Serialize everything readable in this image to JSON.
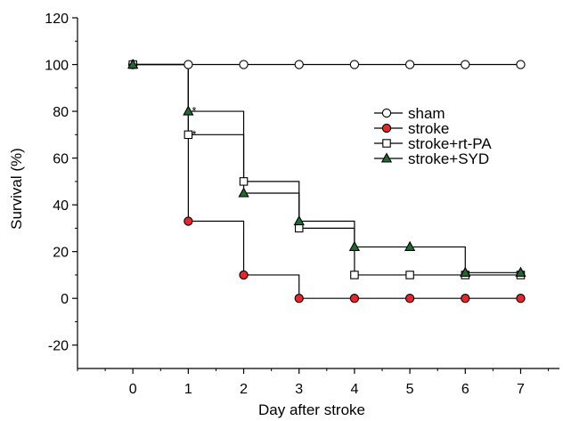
{
  "chart_data": {
    "type": "line",
    "step": true,
    "title": "",
    "xlabel": "Day after stroke",
    "ylabel": "Survival (%)",
    "xlim": [
      -1,
      7.7
    ],
    "ylim": [
      -30,
      120
    ],
    "x_ticks": [
      0,
      1,
      2,
      3,
      4,
      5,
      6,
      7
    ],
    "y_ticks": [
      -20,
      0,
      20,
      40,
      60,
      80,
      100,
      120
    ],
    "grid": false,
    "legend_position": "right-center",
    "x": [
      0,
      1,
      2,
      3,
      4,
      5,
      6,
      7
    ],
    "series": [
      {
        "name": "sham",
        "values": [
          100,
          100,
          100,
          100,
          100,
          100,
          100,
          100
        ],
        "marker": "circle-open",
        "color": "#ffffff"
      },
      {
        "name": "stroke",
        "values": [
          100,
          33,
          10,
          0,
          0,
          0,
          0,
          0
        ],
        "marker": "circle-filled",
        "color": "#e8252a"
      },
      {
        "name": "stroke+rt-PA",
        "values": [
          100,
          70,
          50,
          30,
          10,
          10,
          10,
          10
        ],
        "marker": "square-open",
        "color": "#ffffff"
      },
      {
        "name": "stroke+SYD",
        "values": [
          100,
          80,
          45,
          33,
          22,
          22,
          11,
          11
        ],
        "marker": "triangle-filled",
        "color": "#1e6b2e"
      }
    ],
    "annotations": [
      {
        "text": "*",
        "x": 1,
        "y": 80
      },
      {
        "text": "*",
        "x": 1,
        "y": 70
      }
    ]
  }
}
